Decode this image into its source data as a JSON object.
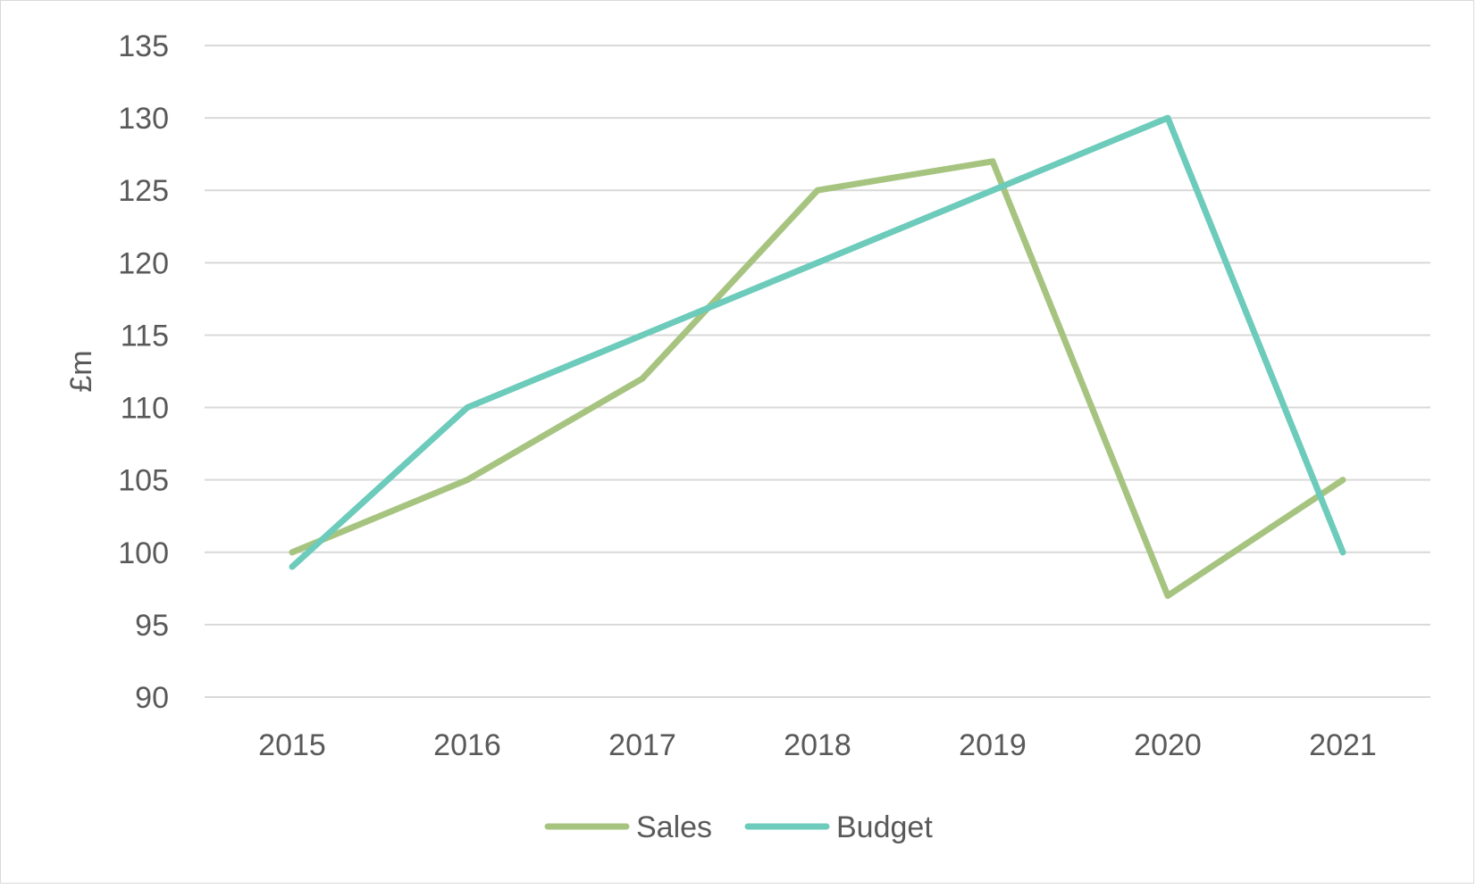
{
  "chart_data": {
    "type": "line",
    "x": [
      "2015",
      "2016",
      "2017",
      "2018",
      "2019",
      "2020",
      "2021"
    ],
    "ylabel": "£m",
    "ylim": [
      90,
      135
    ],
    "yticks": [
      "90",
      "95",
      "100",
      "105",
      "110",
      "115",
      "120",
      "125",
      "130",
      "135"
    ],
    "grid": true,
    "legend": "bottom",
    "series": [
      {
        "name": "Sales",
        "color": "#a6c47f",
        "values": [
          100,
          105,
          112,
          125,
          127,
          97,
          105
        ]
      },
      {
        "name": "Budget",
        "color": "#6ccbbb",
        "values": [
          99,
          110,
          115,
          120,
          125,
          130,
          100
        ]
      }
    ]
  }
}
